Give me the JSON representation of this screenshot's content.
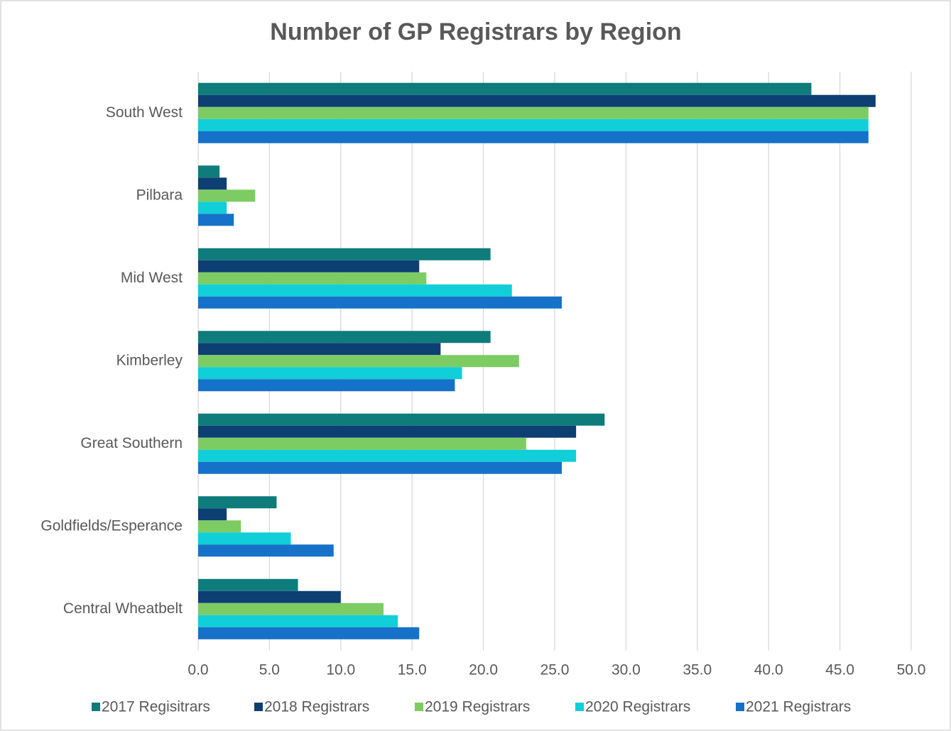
{
  "chart_data": {
    "type": "barh",
    "title": "Number of GP Registrars by Region",
    "categories": [
      "South West",
      "Pilbara",
      "Mid West",
      "Kimberley",
      "Great Southern",
      "Goldfields/Esperance",
      "Central Wheatbelt"
    ],
    "series": [
      {
        "name": "2017 Regisitrars",
        "color": "#0e7c7b",
        "values": [
          43,
          1.5,
          20.5,
          20.5,
          28.5,
          5.5,
          7
        ]
      },
      {
        "name": "2018 Registrars",
        "color": "#0d3f73",
        "values": [
          47.5,
          2,
          15.5,
          17,
          26.5,
          2,
          10
        ]
      },
      {
        "name": "2019 Registrars",
        "color": "#7ccc63",
        "values": [
          47,
          4,
          16,
          22.5,
          23,
          3,
          13
        ]
      },
      {
        "name": "2020 Registrars",
        "color": "#10cfd8",
        "values": [
          47,
          2,
          22,
          18.5,
          26.5,
          6.5,
          14
        ]
      },
      {
        "name": "2021 Registrars",
        "color": "#1572c8",
        "values": [
          47,
          2.5,
          25.5,
          18,
          25.5,
          9.5,
          15.5
        ]
      }
    ],
    "xlim": [
      0,
      50
    ],
    "xticks": [
      {
        "value": 0,
        "label": "0.0"
      },
      {
        "value": 5,
        "label": "5.0"
      },
      {
        "value": 10,
        "label": "10.0"
      },
      {
        "value": 15,
        "label": "15.0"
      },
      {
        "value": 20,
        "label": "20.0"
      },
      {
        "value": 25,
        "label": "25.0"
      },
      {
        "value": 30,
        "label": "30.0"
      },
      {
        "value": 35,
        "label": "35.0"
      },
      {
        "value": 40,
        "label": "40.0"
      },
      {
        "value": 45,
        "label": "45.0"
      },
      {
        "value": 50,
        "label": "50.0"
      }
    ],
    "grid": true,
    "legend": "bottom"
  }
}
